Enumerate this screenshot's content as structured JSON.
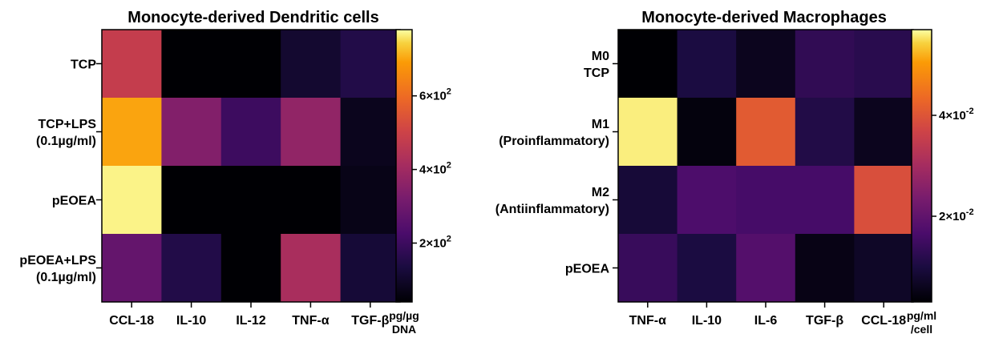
{
  "chart_data": [
    {
      "type": "heatmap",
      "title": "Monocyte-derived Dendritic cells",
      "categories": [
        "CCL-18",
        "IL-10",
        "IL-12",
        "TNF-α",
        "TGF-β"
      ],
      "rows": [
        {
          "label": [
            "TCP"
          ],
          "values": [
            480,
            15,
            10,
            110,
            150
          ]
        },
        {
          "label": [
            "TCP+LPS",
            "(0.1µg/ml)"
          ],
          "values": [
            700,
            340,
            200,
            370,
            80
          ]
        },
        {
          "label": [
            "pEOEA"
          ],
          "values": [
            770,
            8,
            30,
            10,
            70
          ]
        },
        {
          "label": [
            "pEOEA+LPS",
            "(0.1µg/ml)"
          ],
          "values": [
            280,
            150,
            35,
            420,
            120
          ]
        }
      ],
      "colorbar": {
        "range": [
          40,
          780
        ],
        "ticks": [
          {
            "value": 600,
            "label": "6×10",
            "exp": "2"
          },
          {
            "value": 400,
            "label": "4×10",
            "exp": "2"
          },
          {
            "value": 200,
            "label": "2×10",
            "exp": "2"
          }
        ],
        "unit": [
          "pg/µg",
          "DNA"
        ]
      }
    },
    {
      "type": "heatmap",
      "title": "Monocyte-derived Macrophages",
      "categories": [
        "TNF-α",
        "IL-10",
        "IL-6",
        "TGF-β",
        "CCL-18"
      ],
      "rows": [
        {
          "label": [
            "M0",
            "TCP"
          ],
          "values": [
            0.003,
            0.01,
            0.006,
            0.013,
            0.012
          ]
        },
        {
          "label": [
            "M1",
            "(Proinflammatory)"
          ],
          "values": [
            0.056,
            0.004,
            0.041,
            0.011,
            0.006
          ]
        },
        {
          "label": [
            "M2",
            "(Antiinflammatory)"
          ],
          "values": [
            0.009,
            0.017,
            0.016,
            0.016,
            0.039
          ]
        },
        {
          "label": [
            "pEOEA"
          ],
          "values": [
            0.014,
            0.01,
            0.018,
            0.005,
            0.007
          ]
        }
      ],
      "colorbar": {
        "range": [
          0.003,
          0.057
        ],
        "ticks": [
          {
            "value": 0.04,
            "label": "4×10",
            "exp": "-2"
          },
          {
            "value": 0.02,
            "label": "2×10",
            "exp": "-2"
          }
        ],
        "unit": [
          "pg/ml",
          "/cell"
        ]
      }
    }
  ]
}
